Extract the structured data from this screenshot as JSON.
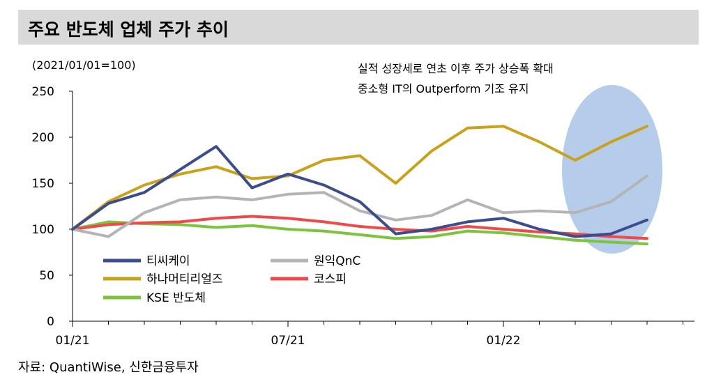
{
  "title": "주요 반도체 업체 주가 추이",
  "subtitle": "(2021/01/01=100)",
  "annotation": {
    "line1": "실적 성장세로 연초 이후 주가 상승폭 확대",
    "line2": "중소형 IT의 Outperform  기조 유지"
  },
  "source": "자료: QuantiWise, 신한금융투자",
  "chart_data": {
    "type": "line",
    "x_tick_labels": [
      "01/21",
      "07/21",
      "01/22"
    ],
    "y_ticks": [
      "0",
      "50",
      "100",
      "150",
      "200",
      "250"
    ],
    "ylim": [
      0,
      250
    ],
    "grid": false,
    "legend_placement": "bottom-left",
    "highlight": "ellipse around 2022 Q2 (late period)",
    "x": [
      "2021-01",
      "2021-02",
      "2021-03",
      "2021-04",
      "2021-05",
      "2021-06",
      "2021-07",
      "2021-08",
      "2021-09",
      "2021-10",
      "2021-11",
      "2021-12",
      "2022-01",
      "2022-02",
      "2022-03",
      "2022-04",
      "2022-05"
    ],
    "series": [
      {
        "name": "티씨케이",
        "color": "#3b4d8c",
        "values": [
          100,
          128,
          140,
          165,
          190,
          145,
          160,
          148,
          130,
          95,
          100,
          108,
          112,
          100,
          92,
          95,
          110
        ]
      },
      {
        "name": "원익QnC",
        "color": "#b4b4b4",
        "values": [
          100,
          92,
          118,
          132,
          135,
          132,
          138,
          140,
          120,
          110,
          115,
          132,
          118,
          120,
          118,
          130,
          158
        ]
      },
      {
        "name": "하나머티리얼즈",
        "color": "#c9a11a",
        "values": [
          100,
          130,
          148,
          160,
          168,
          155,
          158,
          175,
          180,
          150,
          185,
          210,
          212,
          195,
          175,
          195,
          212
        ]
      },
      {
        "name": "코스피",
        "color": "#ef4a4a",
        "values": [
          100,
          105,
          107,
          108,
          112,
          114,
          112,
          108,
          103,
          100,
          98,
          103,
          100,
          97,
          95,
          92,
          90
        ]
      },
      {
        "name": "KSE 반도체",
        "color": "#7cc43d",
        "values": [
          100,
          108,
          106,
          105,
          102,
          104,
          100,
          98,
          94,
          90,
          92,
          98,
          96,
          92,
          88,
          86,
          84
        ]
      }
    ]
  }
}
